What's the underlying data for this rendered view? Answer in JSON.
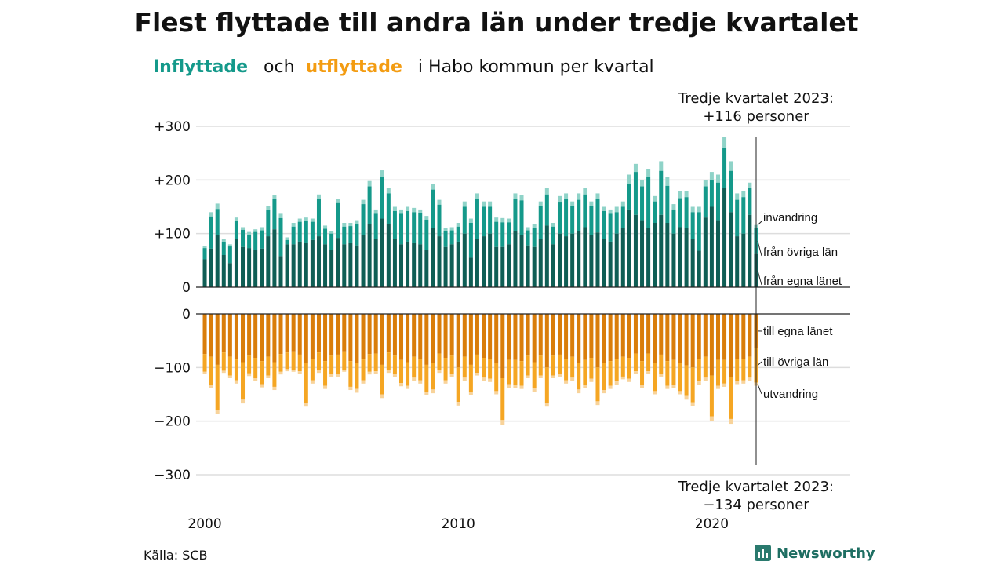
{
  "title": "Flest flyttade till andra län under tredje kvartalet",
  "subtitle": {
    "in_word": "Inflyttade",
    "and_word": "och",
    "out_word": "utflyttade",
    "rest": "i Habo kommun per kvartal"
  },
  "annotation_top": {
    "line1": "Tredje kvartalet 2023:",
    "line2": "+116 personer"
  },
  "annotation_bottom": {
    "line1": "Tredje kvartalet 2023:",
    "line2": "−134 personer"
  },
  "source": "Källa: SCB",
  "logo": "Newsworthy",
  "colors": {
    "in_own": "#0f5e55",
    "in_other": "#14998a",
    "in_immig": "#8fd3c8",
    "out_own": "#d97d0a",
    "out_other": "#f5a623",
    "out_emig": "#f8d39a",
    "grid": "#dddddd",
    "axis": "#222222"
  },
  "chart_data": {
    "type": "bar",
    "stacked": true,
    "x_start_year": 2000,
    "x_tick_labels": [
      "2000",
      "2010",
      "2020"
    ],
    "y_ticks": [
      300,
      200,
      100,
      0,
      -100,
      -200,
      -300
    ],
    "y_tick_labels": [
      "+300",
      "+200",
      "+100",
      "0",
      "−100",
      "−200",
      "−300"
    ],
    "ylim_in": [
      0,
      300
    ],
    "ylim_out": [
      -300,
      0
    ],
    "series_labels_in": [
      "invandring",
      "från övriga län",
      "från egna länet"
    ],
    "series_labels_out": [
      "till egna länet",
      "till övriga län",
      "utvandring"
    ],
    "inflow_totals": [
      77,
      140,
      156,
      90,
      80,
      130,
      112,
      103,
      108,
      112,
      152,
      172,
      137,
      93,
      120,
      128,
      130,
      128,
      173,
      115,
      105,
      165,
      120,
      120,
      125,
      163,
      198,
      145,
      218,
      185,
      150,
      145,
      150,
      148,
      145,
      133,
      192,
      163,
      110,
      112,
      120,
      160,
      128,
      175,
      160,
      160,
      130,
      129,
      128,
      175,
      172,
      112,
      118,
      160,
      185,
      120,
      170,
      175,
      160,
      175,
      185,
      160,
      175,
      150,
      145,
      150,
      160,
      210,
      230,
      200,
      220,
      170,
      235,
      205,
      155,
      180,
      180,
      150,
      150,
      200,
      215,
      210,
      280,
      235,
      175,
      180,
      195,
      116
    ],
    "inflow_immig": [
      4,
      8,
      10,
      6,
      4,
      7,
      5,
      5,
      5,
      6,
      8,
      8,
      8,
      5,
      7,
      6,
      6,
      6,
      8,
      6,
      5,
      8,
      7,
      6,
      7,
      8,
      10,
      8,
      12,
      10,
      8,
      8,
      8,
      8,
      7,
      7,
      10,
      9,
      6,
      6,
      7,
      10,
      8,
      10,
      10,
      10,
      8,
      8,
      7,
      10,
      10,
      6,
      7,
      9,
      12,
      7,
      12,
      10,
      8,
      12,
      12,
      9,
      10,
      8,
      8,
      10,
      10,
      18,
      15,
      12,
      15,
      10,
      18,
      16,
      10,
      14,
      12,
      10,
      10,
      12,
      15,
      15,
      20,
      18,
      12,
      12,
      10,
      6
    ],
    "inflow_own": [
      52,
      72,
      98,
      60,
      45,
      90,
      75,
      73,
      70,
      72,
      95,
      108,
      58,
      80,
      80,
      85,
      82,
      88,
      95,
      80,
      70,
      92,
      80,
      82,
      78,
      98,
      118,
      90,
      128,
      118,
      90,
      80,
      85,
      82,
      80,
      70,
      110,
      95,
      75,
      80,
      85,
      100,
      55,
      90,
      95,
      100,
      75,
      75,
      80,
      105,
      98,
      78,
      75,
      90,
      115,
      80,
      100,
      95,
      100,
      105,
      112,
      98,
      102,
      90,
      85,
      100,
      110,
      145,
      135,
      125,
      110,
      120,
      135,
      120,
      100,
      112,
      110,
      90,
      68,
      130,
      150,
      125,
      185,
      140,
      95,
      100,
      135,
      62
    ],
    "outflow_totals": [
      112,
      138,
      187,
      110,
      120,
      130,
      167,
      116,
      125,
      137,
      120,
      142,
      113,
      107,
      108,
      112,
      173,
      130,
      110,
      140,
      118,
      117,
      108,
      142,
      147,
      130,
      113,
      112,
      157,
      110,
      118,
      135,
      140,
      125,
      130,
      152,
      148,
      110,
      130,
      118,
      171,
      125,
      152,
      115,
      125,
      127,
      150,
      207,
      138,
      138,
      140,
      120,
      145,
      120,
      173,
      120,
      117,
      130,
      125,
      148,
      138,
      127,
      170,
      148,
      140,
      132,
      122,
      127,
      112,
      138,
      112,
      150,
      117,
      140,
      138,
      150,
      160,
      172,
      132,
      125,
      200,
      140,
      136,
      205,
      131,
      130,
      125,
      134
    ],
    "outflow_emig": [
      4,
      6,
      8,
      4,
      5,
      6,
      7,
      5,
      5,
      6,
      5,
      6,
      5,
      4,
      4,
      5,
      7,
      6,
      5,
      6,
      5,
      5,
      4,
      6,
      7,
      6,
      5,
      5,
      7,
      5,
      5,
      6,
      6,
      6,
      6,
      7,
      7,
      5,
      6,
      5,
      7,
      6,
      7,
      5,
      6,
      6,
      6,
      9,
      7,
      6,
      6,
      5,
      6,
      5,
      7,
      5,
      5,
      6,
      6,
      7,
      6,
      6,
      7,
      6,
      6,
      6,
      5,
      6,
      5,
      6,
      5,
      6,
      5,
      6,
      6,
      6,
      7,
      7,
      6,
      6,
      9,
      6,
      6,
      9,
      6,
      6,
      6,
      6
    ],
    "outflow_own": [
      75,
      80,
      95,
      72,
      80,
      85,
      90,
      78,
      82,
      88,
      80,
      90,
      75,
      72,
      70,
      76,
      92,
      84,
      72,
      88,
      78,
      76,
      70,
      88,
      92,
      85,
      75,
      74,
      95,
      72,
      78,
      86,
      90,
      80,
      84,
      95,
      92,
      74,
      82,
      78,
      100,
      80,
      95,
      76,
      82,
      84,
      92,
      120,
      86,
      86,
      88,
      78,
      90,
      78,
      100,
      78,
      76,
      84,
      80,
      92,
      86,
      82,
      100,
      92,
      88,
      84,
      80,
      82,
      74,
      88,
      74,
      92,
      76,
      88,
      86,
      92,
      96,
      100,
      84,
      80,
      115,
      86,
      86,
      118,
      84,
      84,
      80,
      64
    ]
  }
}
